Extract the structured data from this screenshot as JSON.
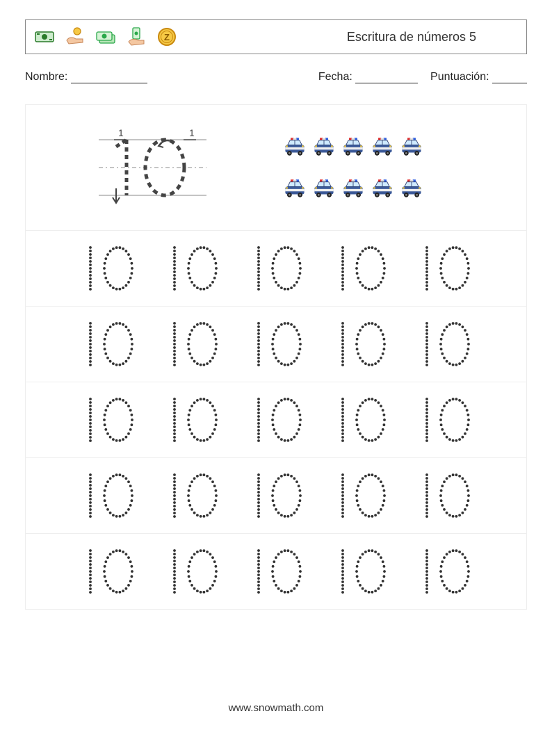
{
  "title": "Escritura de números 5",
  "fields": {
    "name_label": "Nombre:",
    "date_label": "Fecha:",
    "score_label": "Puntuación:"
  },
  "number": "10",
  "counting": {
    "rows": 2,
    "per_row": 5,
    "icon": "police-car",
    "car_body_color": "#3b5998",
    "car_light_colors": [
      "#e03030",
      "#3060e0"
    ],
    "car_window_color": "#cfeaff"
  },
  "tracing": {
    "rows": 5,
    "per_row": 5,
    "dot_color": "#333333",
    "dot_radius": 1.9
  },
  "demo": {
    "stroke_color": "#444444",
    "guide_color": "#888888",
    "label_1": "1"
  },
  "header_icons": [
    {
      "name": "banknote-icon",
      "color": "#2a7a2a"
    },
    {
      "name": "hand-coin-icon",
      "color": "#e08a1a"
    },
    {
      "name": "cash-stack-icon",
      "color": "#2aa84a"
    },
    {
      "name": "hand-money-icon",
      "color": "#2aa84a"
    },
    {
      "name": "coin-z-icon",
      "color": "#e6a817"
    }
  ],
  "footer": "www.snowmath.com",
  "colors": {
    "border": "#888888",
    "row_divider": "#eeeeee",
    "text": "#222222",
    "background": "#ffffff"
  }
}
